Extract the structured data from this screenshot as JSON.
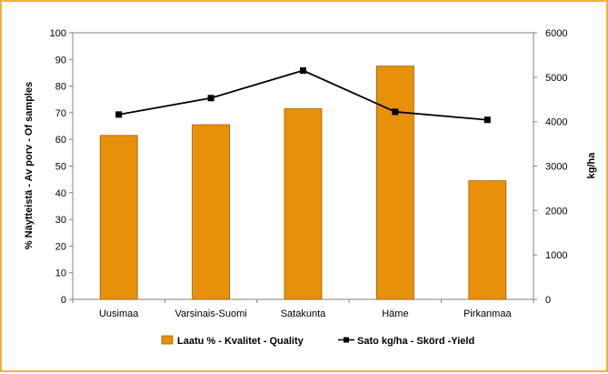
{
  "chart_data": {
    "type": "bar+line",
    "categories": [
      "Uusimaa",
      "Varsinais-Suomi",
      "Satakunta",
      "Häme",
      "Pirkanmaa"
    ],
    "series": [
      {
        "name": "Laatu % - Kvalitet - Quality",
        "type": "bar",
        "axis": "left",
        "color": "#e8900a",
        "values": [
          61.5,
          65.5,
          71.5,
          87.5,
          44.5
        ]
      },
      {
        "name": "Sato kg/ha - Skörd -Yield",
        "type": "line",
        "axis": "right",
        "color": "#000000",
        "values": [
          4160,
          4530,
          5150,
          4220,
          4040
        ]
      }
    ],
    "y_left": {
      "label": "% Näytteistä - Av porv - Of samples",
      "min": 0,
      "max": 100,
      "ticks": [
        0,
        10,
        20,
        30,
        40,
        50,
        60,
        70,
        80,
        90,
        100
      ]
    },
    "y_right": {
      "label": "kg/ha",
      "min": 0,
      "max": 6000,
      "ticks": [
        0,
        1000,
        2000,
        3000,
        4000,
        5000,
        6000
      ]
    },
    "grid": false,
    "legend_position": "bottom"
  }
}
